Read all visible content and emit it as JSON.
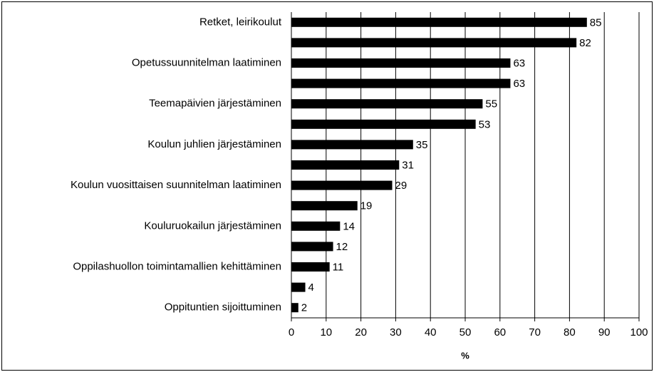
{
  "chart_data": {
    "type": "hbar",
    "categories": [
      "Retket, leirikoulut",
      null,
      "Opetussuunnitelman laatiminen",
      null,
      "Teemapäivien järjestäminen",
      null,
      "Koulun juhlien järjestäminen",
      null,
      "Koulun vuosittaisen suunnitelman laatiminen",
      null,
      "Kouluruokailun järjestäminen",
      null,
      "Oppilashuollon toimintamallien kehittäminen",
      null,
      "Oppituntien sijoittuminen"
    ],
    "values": [
      85,
      82,
      63,
      63,
      55,
      53,
      35,
      31,
      29,
      19,
      14,
      12,
      11,
      4,
      2
    ],
    "color": "#000000",
    "xlabel": "%",
    "xlim": [
      0,
      100
    ],
    "xticks": [
      0,
      10,
      20,
      30,
      40,
      50,
      60,
      70,
      80,
      90,
      100
    ],
    "grid": true
  }
}
